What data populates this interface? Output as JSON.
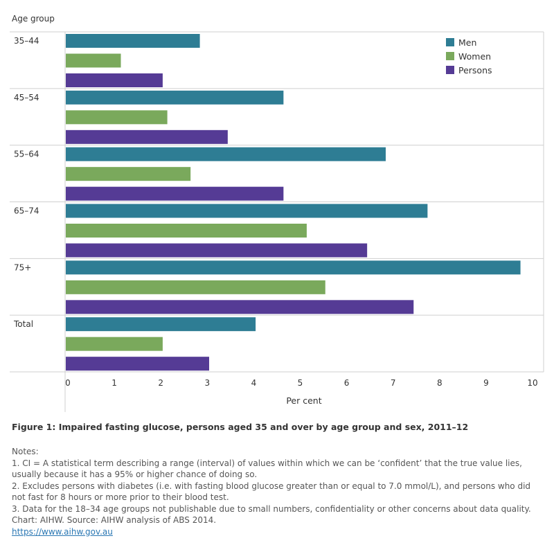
{
  "chart_data": {
    "type": "bar",
    "orientation": "horizontal",
    "y_axis_title": "Age group",
    "xlabel": "Per cent",
    "xlim": [
      0,
      10
    ],
    "x_ticks": [
      "0",
      "1",
      "2",
      "3",
      "4",
      "5",
      "6",
      "7",
      "8",
      "9",
      "10"
    ],
    "categories": [
      "35–44",
      "45–54",
      "55–64",
      "65–74",
      "75+",
      "Total"
    ],
    "series": [
      {
        "name": "Men",
        "color": "#2e7d94",
        "values": [
          2.9,
          4.7,
          6.9,
          7.8,
          9.8,
          4.1
        ]
      },
      {
        "name": "Women",
        "color": "#7aa95c",
        "values": [
          1.2,
          2.2,
          2.7,
          5.2,
          5.6,
          2.1
        ]
      },
      {
        "name": "Persons",
        "color": "#553b95",
        "values": [
          2.1,
          3.5,
          4.7,
          6.5,
          7.5,
          3.1
        ]
      }
    ],
    "legend_position": "top-right",
    "grid": false
  },
  "caption": "Figure 1: Impaired fasting glucose, persons aged 35 and over by age group and sex, 2011–12",
  "notes": {
    "heading": "Notes:",
    "lines": [
      "1. CI = A statistical term describing a range (interval) of values within which we can be ‘confident’ that the true value lies, usually because it has a 95% or higher chance of doing so.",
      "2. Excludes persons with diabetes (i.e. with fasting blood glucose greater than or equal to 7.0 mmol/L), and persons who did not fast for 8 hours or more prior to their blood test.",
      "3. Data for the 18–34 age groups not publishable due to small numbers, confidentiality or other concerns about data quality."
    ],
    "source": "Chart: AIHW.  Source: AIHW analysis of ABS 2014.",
    "link": "https://www.aihw.gov.au"
  }
}
